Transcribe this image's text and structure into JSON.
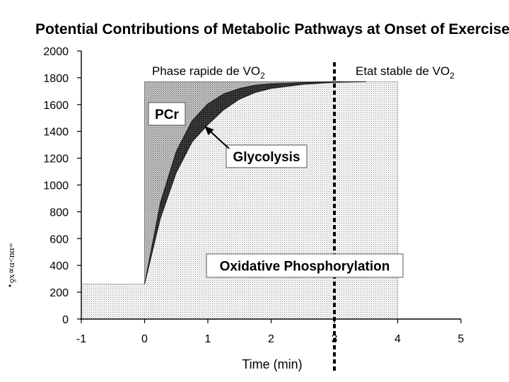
{
  "chart_data": {
    "type": "area",
    "title": "Potential Contributions of Metabolic Pathways at Onset of Exercise",
    "xlabel": "Time (min)",
    "ylabel_fragment": "ƍx∝α<nα=",
    "xlim": [
      -1,
      5
    ],
    "ylim": [
      0,
      2000
    ],
    "x_ticks": [
      "-1",
      "0",
      "1",
      "2",
      "3",
      "4",
      "5"
    ],
    "y_ticks": [
      "0",
      "200",
      "400",
      "600",
      "800",
      "1000",
      "1200",
      "1400",
      "1600",
      "1800",
      "2000"
    ],
    "total_demand": {
      "x": [
        -1,
        0,
        0,
        4
      ],
      "y": [
        260,
        260,
        1770,
        1770
      ]
    },
    "series": [
      {
        "name": "Oxidative Phosphorylation",
        "x": [
          -1,
          0,
          0.25,
          0.5,
          0.75,
          1,
          1.25,
          1.5,
          1.75,
          2,
          2.5,
          3,
          3.5,
          4
        ],
        "y": [
          260,
          260,
          750,
          1090,
          1320,
          1450,
          1560,
          1640,
          1690,
          1720,
          1750,
          1765,
          1770,
          1770
        ]
      },
      {
        "name": "Glycolysis",
        "x": [
          0,
          0.25,
          0.5,
          0.75,
          1,
          1.25,
          1.5,
          1.75,
          2,
          2.5,
          3,
          3.5
        ],
        "y_lower": [
          260,
          750,
          1090,
          1320,
          1450,
          1560,
          1640,
          1690,
          1720,
          1750,
          1765,
          1770
        ],
        "y_upper": [
          260,
          870,
          1250,
          1480,
          1605,
          1680,
          1720,
          1745,
          1755,
          1765,
          1770,
          1770
        ]
      },
      {
        "name": "PCr",
        "region": "between demand step and glycolysis curve"
      }
    ],
    "annotations": {
      "phase_fast": {
        "text": "Phase rapide de VO",
        "sub": "2"
      },
      "phase_steady": {
        "text": "Etat stable de VO",
        "sub": "2"
      },
      "divider_x": 3.0,
      "label_pcr": "PCr",
      "label_glycolysis": "Glycolysis",
      "label_oxphos": "Oxidative Phosphorylation",
      "glycolysis_arrow_target": {
        "x": 0.95,
        "y": 1440
      }
    }
  },
  "colors": {
    "background": "#ffffff",
    "axis": "#000000",
    "oxphos_dot": "#8a8a8a",
    "pcr_dot": "#6a6a6a",
    "glycolysis_band": "#2b2b2b",
    "divider": "#000000"
  }
}
